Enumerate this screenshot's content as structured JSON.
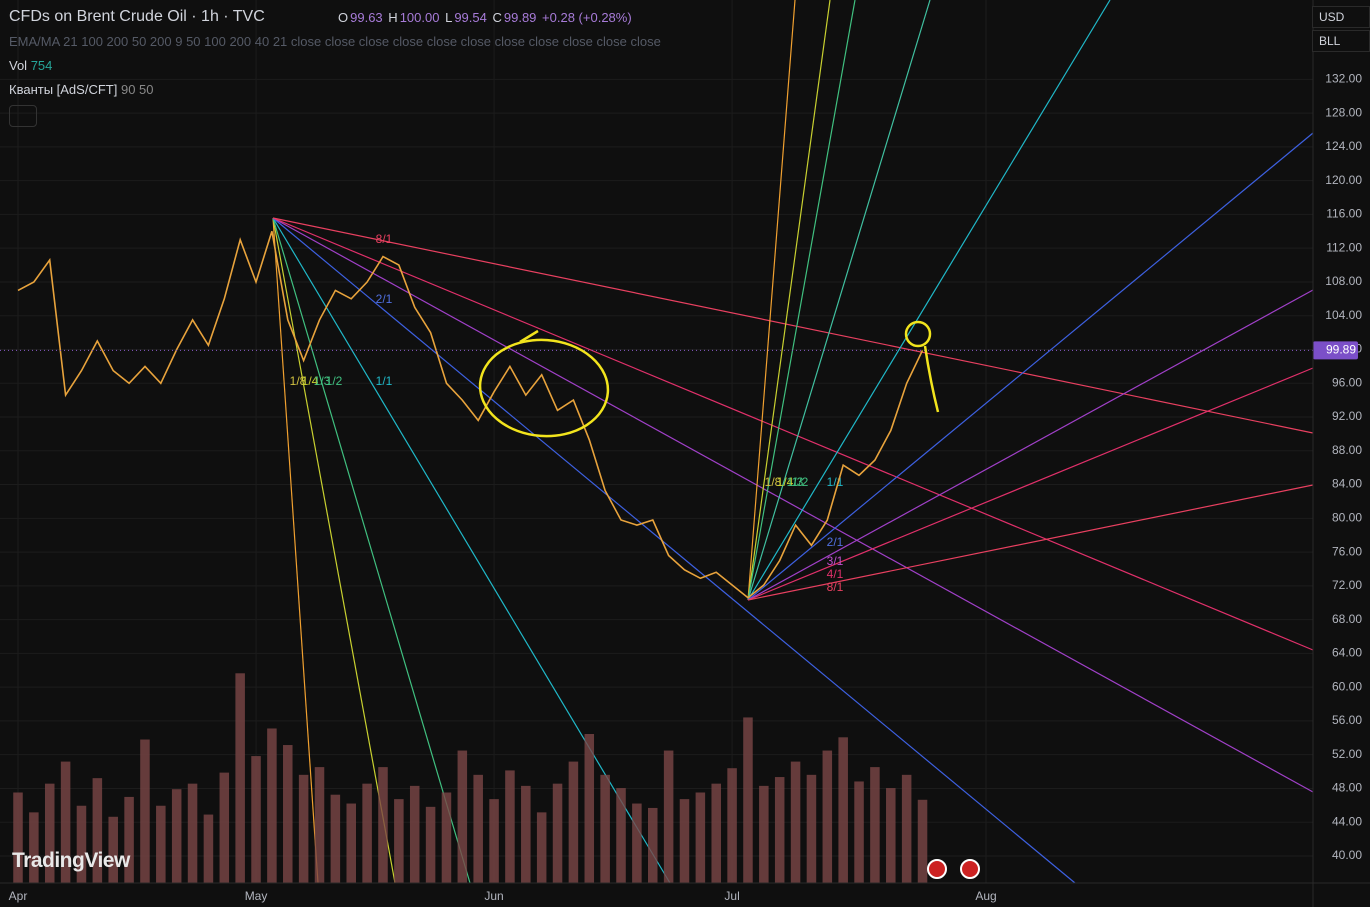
{
  "header": {
    "symbol": "CFDs on Brent Crude Oil · 1h · TVC",
    "ohlc": [
      {
        "label": "O",
        "value": "99.63"
      },
      {
        "label": "H",
        "value": "100.00"
      },
      {
        "label": "L",
        "value": "99.54"
      },
      {
        "label": "C",
        "value": "99.89"
      }
    ],
    "change": "+0.28 (+0.28%)",
    "indicator": "EMA/MA 21 100 200 50 200 9 50 100 200 40 21 close close close close close close close close close close close",
    "volume": {
      "label": "Vol",
      "value": "754"
    },
    "quant": {
      "label": "Кванты [AdS/CFT]",
      "value": "90 50"
    },
    "currency": "USD",
    "unit": "BLL",
    "logo": "TradingView"
  },
  "chart_data": {
    "type": "line",
    "categories": [
      "Apr",
      null,
      null,
      null,
      null,
      null,
      null,
      null,
      null,
      null,
      null,
      null,
      null,
      null,
      null,
      "May",
      null,
      null,
      null,
      null,
      null,
      null,
      null,
      null,
      null,
      null,
      null,
      null,
      null,
      null,
      "Jun",
      null,
      null,
      null,
      null,
      null,
      null,
      null,
      null,
      null,
      null,
      null,
      null,
      null,
      null,
      "Jul",
      null,
      null,
      null,
      null,
      null,
      null,
      null,
      null,
      null,
      null,
      null,
      null,
      null,
      null,
      null,
      "Aug"
    ],
    "series": [
      {
        "name": "Price",
        "color": "#e8a33c",
        "values": [
          107,
          108,
          110.6,
          94.6,
          97.5,
          101,
          97.5,
          96,
          98,
          96,
          100,
          103.5,
          100.5,
          106,
          113,
          108,
          114,
          103.5,
          98.7,
          103.5,
          107,
          106,
          108,
          111,
          110,
          105,
          102,
          96,
          94,
          91.6,
          95,
          98,
          94.6,
          97,
          92.8,
          94,
          89.3,
          83.3,
          79.8,
          79.2,
          79.8,
          75.6,
          73.9,
          72.9,
          73.6,
          72.1,
          70.6,
          72.1,
          75,
          79.2,
          76.8,
          79.8,
          86.3,
          85.1,
          86.9,
          90.4,
          96,
          99.89,
          null,
          null,
          null,
          null
        ]
      },
      {
        "name": "Vol",
        "color": "#7a4646",
        "axis": "y2",
        "values": [
          820,
          640,
          900,
          1100,
          700,
          950,
          600,
          780,
          1300,
          700,
          850,
          900,
          620,
          1000,
          1900,
          1150,
          1400,
          1250,
          980,
          1050,
          800,
          720,
          900,
          1050,
          760,
          880,
          690,
          820,
          1200,
          980,
          760,
          1020,
          880,
          640,
          900,
          1100,
          1350,
          980,
          860,
          720,
          680,
          1200,
          760,
          820,
          900,
          1040,
          1500,
          880,
          960,
          1100,
          980,
          1200,
          1320,
          920,
          1050,
          860,
          980,
          754,
          null,
          null,
          null,
          null
        ]
      }
    ],
    "ylim": [
      36.8,
      141.4
    ],
    "yticks": [
      {
        "value": 40,
        "label": "40.00"
      },
      {
        "value": 44,
        "label": "44.00"
      },
      {
        "value": 48,
        "label": "48.00"
      },
      {
        "value": 52,
        "label": "52.00"
      },
      {
        "value": 56,
        "label": "56.00"
      },
      {
        "value": 60,
        "label": "60.00"
      },
      {
        "value": 64,
        "label": "64.00"
      },
      {
        "value": 68,
        "label": "68.00"
      },
      {
        "value": 72,
        "label": "72.00"
      },
      {
        "value": 76,
        "label": "76.00"
      },
      {
        "value": 80,
        "label": "80.00"
      },
      {
        "value": 84,
        "label": "84.00"
      },
      {
        "value": 88,
        "label": "88.00"
      },
      {
        "value": 92,
        "label": "92.00"
      },
      {
        "value": 96,
        "label": "96.00"
      },
      {
        "value": 100,
        "label": "100.00"
      },
      {
        "value": 104,
        "label": "104.00"
      },
      {
        "value": 108,
        "label": "108.00"
      },
      {
        "value": 112,
        "label": "112.00"
      },
      {
        "value": 116,
        "label": "116.00"
      },
      {
        "value": 120,
        "label": "120.00"
      },
      {
        "value": 124,
        "label": "124.00"
      },
      {
        "value": 128,
        "label": "128.00"
      },
      {
        "value": 132,
        "label": "132.00"
      }
    ],
    "y2lim": [
      0,
      8000
    ],
    "grid": true,
    "fan_labels": [
      "8/1",
      "2/1",
      "1/8",
      "1/4",
      "1/3",
      "1/2",
      "1/1",
      "1/8",
      "1/4",
      "1/3",
      "1/2",
      "1/1",
      "2/1",
      "3/1",
      "4/1",
      "8/1"
    ]
  }
}
